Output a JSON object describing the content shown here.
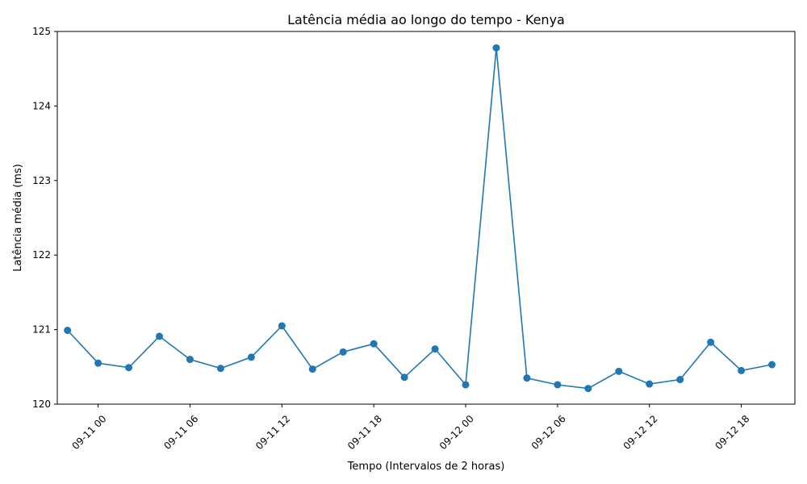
{
  "chart_data": {
    "type": "line",
    "title": "Latência média ao longo do tempo - Kenya",
    "xlabel": "Tempo (Intervalos de 2 horas)",
    "ylabel": "Latência média (ms)",
    "xlim": [
      "2024-09-10T21:20",
      "2024-09-12T21:30"
    ],
    "ylim": [
      120,
      125
    ],
    "x_ticks": [
      {
        "x": "2024-09-11T00:00",
        "label": "09-11 00"
      },
      {
        "x": "2024-09-11T06:00",
        "label": "09-11 06"
      },
      {
        "x": "2024-09-11T12:00",
        "label": "09-11 12"
      },
      {
        "x": "2024-09-11T18:00",
        "label": "09-11 18"
      },
      {
        "x": "2024-09-12T00:00",
        "label": "09-12 00"
      },
      {
        "x": "2024-09-12T06:00",
        "label": "09-12 06"
      },
      {
        "x": "2024-09-12T12:00",
        "label": "09-12 12"
      },
      {
        "x": "2024-09-12T18:00",
        "label": "09-12 18"
      }
    ],
    "y_ticks": [
      120,
      121,
      122,
      123,
      124,
      125
    ],
    "grid": false,
    "color": "#1f77b4",
    "x": [
      "2024-09-10T22:00",
      "2024-09-11T00:00",
      "2024-09-11T02:00",
      "2024-09-11T04:00",
      "2024-09-11T06:00",
      "2024-09-11T08:00",
      "2024-09-11T10:00",
      "2024-09-11T12:00",
      "2024-09-11T14:00",
      "2024-09-11T16:00",
      "2024-09-11T18:00",
      "2024-09-11T20:00",
      "2024-09-11T22:00",
      "2024-09-12T00:00",
      "2024-09-12T02:00",
      "2024-09-12T04:00",
      "2024-09-12T06:00",
      "2024-09-12T08:00",
      "2024-09-12T10:00",
      "2024-09-12T12:00",
      "2024-09-12T14:00",
      "2024-09-12T16:00",
      "2024-09-12T18:00",
      "2024-09-12T20:00"
    ],
    "values": [
      120.99,
      120.55,
      120.49,
      120.91,
      120.6,
      120.48,
      120.63,
      121.05,
      120.47,
      120.7,
      120.81,
      120.36,
      120.74,
      120.26,
      124.78,
      120.35,
      120.26,
      120.21,
      120.44,
      120.27,
      120.33,
      120.83,
      120.45,
      120.53
    ]
  }
}
